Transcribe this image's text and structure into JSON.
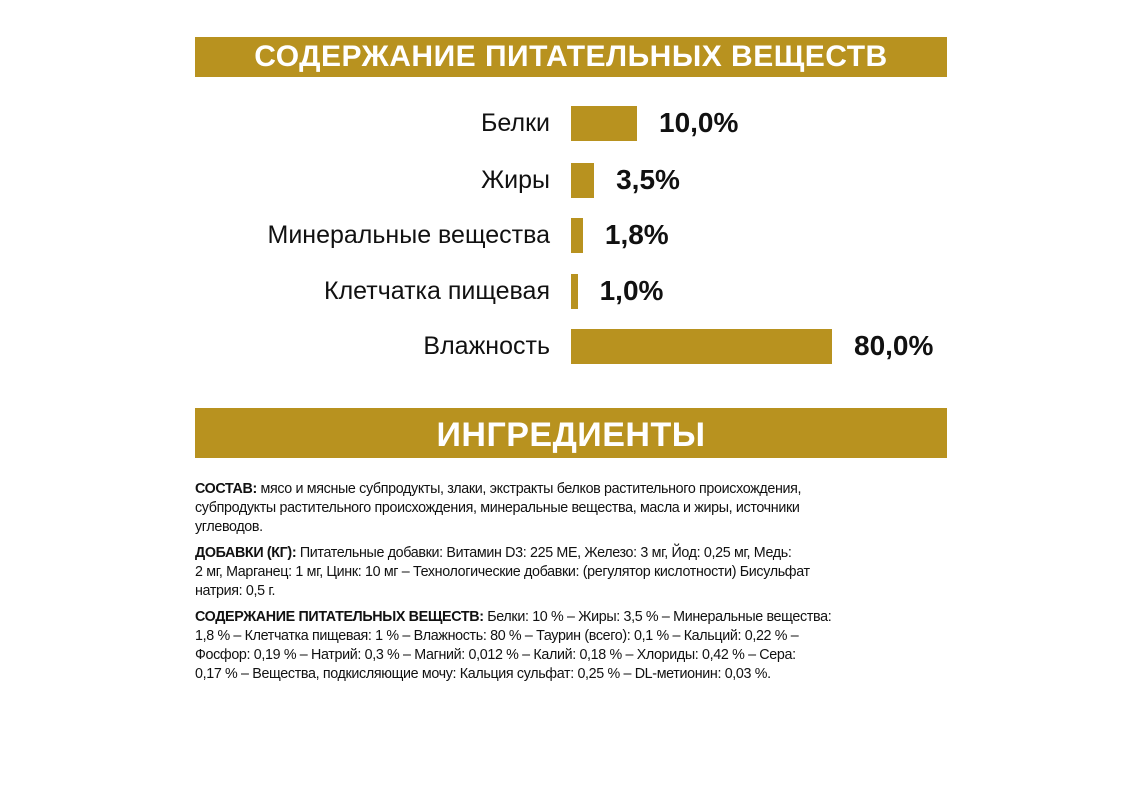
{
  "header_nutrients": "СОДЕРЖАНИЕ ПИТАТЕЛЬНЫХ ВЕЩЕСТВ",
  "header_ingredients": "ИНГРЕДИЕНТЫ",
  "colors": {
    "accent": "#b8921f",
    "text": "#111111",
    "background": "#ffffff"
  },
  "chart_data": {
    "type": "bar",
    "orientation": "horizontal",
    "title": "СОДЕРЖАНИЕ ПИТАТЕЛЬНЫХ ВЕЩЕСТВ",
    "categories": [
      "Белки",
      "Жиры",
      "Минеральные вещества",
      "Клетчатка пищевая",
      "Влажность"
    ],
    "values": [
      10.0,
      3.5,
      1.8,
      1.0,
      80.0
    ],
    "labels": [
      "10,0%",
      "3,5%",
      "1,8%",
      "1,0%",
      "80,0%"
    ],
    "unit": "%",
    "grid": false,
    "axes_visible": false
  },
  "ingredients": [
    {
      "label": "СОСТАВ:",
      "lines": [
        " мясо и мясные субпродукты, злаки, экстракты белков растительного происхождения,",
        "субпродукты растительного происхождения, минеральные вещества, масла и жиры, источники",
        "углеводов."
      ]
    },
    {
      "label": "ДОБАВКИ (КГ):",
      "lines": [
        " Питательные добавки: Витамин D3: 225 МЕ, Железо: 3 мг, Йод: 0,25 мг, Медь:",
        "2 мг, Марганец: 1 мг, Цинк: 10 мг – Технологические добавки: (регулятор кислотности) Бисульфат",
        "натрия: 0,5 г."
      ]
    },
    {
      "label": "СОДЕРЖАНИЕ ПИТАТЕЛЬНЫХ ВЕЩЕСТВ:",
      "lines": [
        " Белки: 10 % – Жиры: 3,5 % – Минеральные вещества:",
        "1,8 % – Клетчатка пищевая: 1 % – Влажность: 80 % – Таурин (всего): 0,1 % – Кальций: 0,22 % –",
        "Фосфор: 0,19 % – Натрий: 0,3 % – Магний: 0,012 % – Калий: 0,18 % – Хлориды: 0,42 % – Сера:",
        "0,17 % – Вещества, подкисляющие мочу: Кальция сульфат: 0,25 % – DL-метионин: 0,03 %."
      ]
    }
  ]
}
